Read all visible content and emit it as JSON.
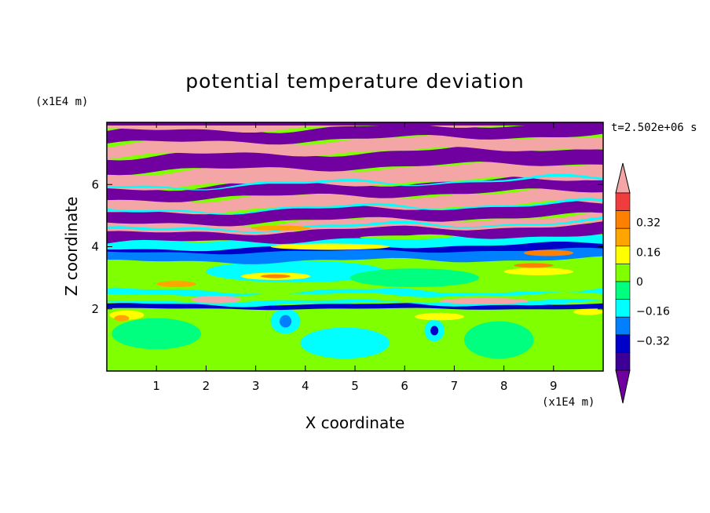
{
  "chart_data": {
    "type": "heatmap",
    "title": "potential temperature deviation",
    "xlabel": "X coordinate",
    "ylabel": "Z coordinate",
    "x_unit_label": "(x1E4 m)",
    "y_unit_label": "(x1E4 m)",
    "time_label": "t=2.502e+06 s",
    "xlim": [
      0,
      10
    ],
    "ylim": [
      0,
      8
    ],
    "x_ticks": [
      "1",
      "2",
      "3",
      "4",
      "5",
      "6",
      "7",
      "8",
      "9"
    ],
    "y_ticks": [
      "2",
      "4",
      "6"
    ],
    "colorbar": {
      "labels": [
        {
          "value": 0.32,
          "text": "0.32"
        },
        {
          "value": 0.16,
          "text": "0.16"
        },
        {
          "value": 0,
          "text": "0"
        },
        {
          "value": -0.16,
          "text": "−0.16"
        },
        {
          "value": -0.32,
          "text": "−0.32"
        }
      ],
      "levels": [
        0.48,
        0.4,
        0.32,
        0.24,
        0.16,
        0.08,
        0,
        -0.08,
        -0.16,
        -0.24,
        -0.32,
        -0.4,
        -0.48
      ],
      "colors": [
        "#f03c3c",
        "#ff7f00",
        "#ffa500",
        "#ffff00",
        "#7fff00",
        "#00ff7f",
        "#00ffff",
        "#0080ff",
        "#0000c8",
        "#3c0096"
      ],
      "over_color": "#f4a6a6",
      "under_color": "#7000a0"
    }
  }
}
